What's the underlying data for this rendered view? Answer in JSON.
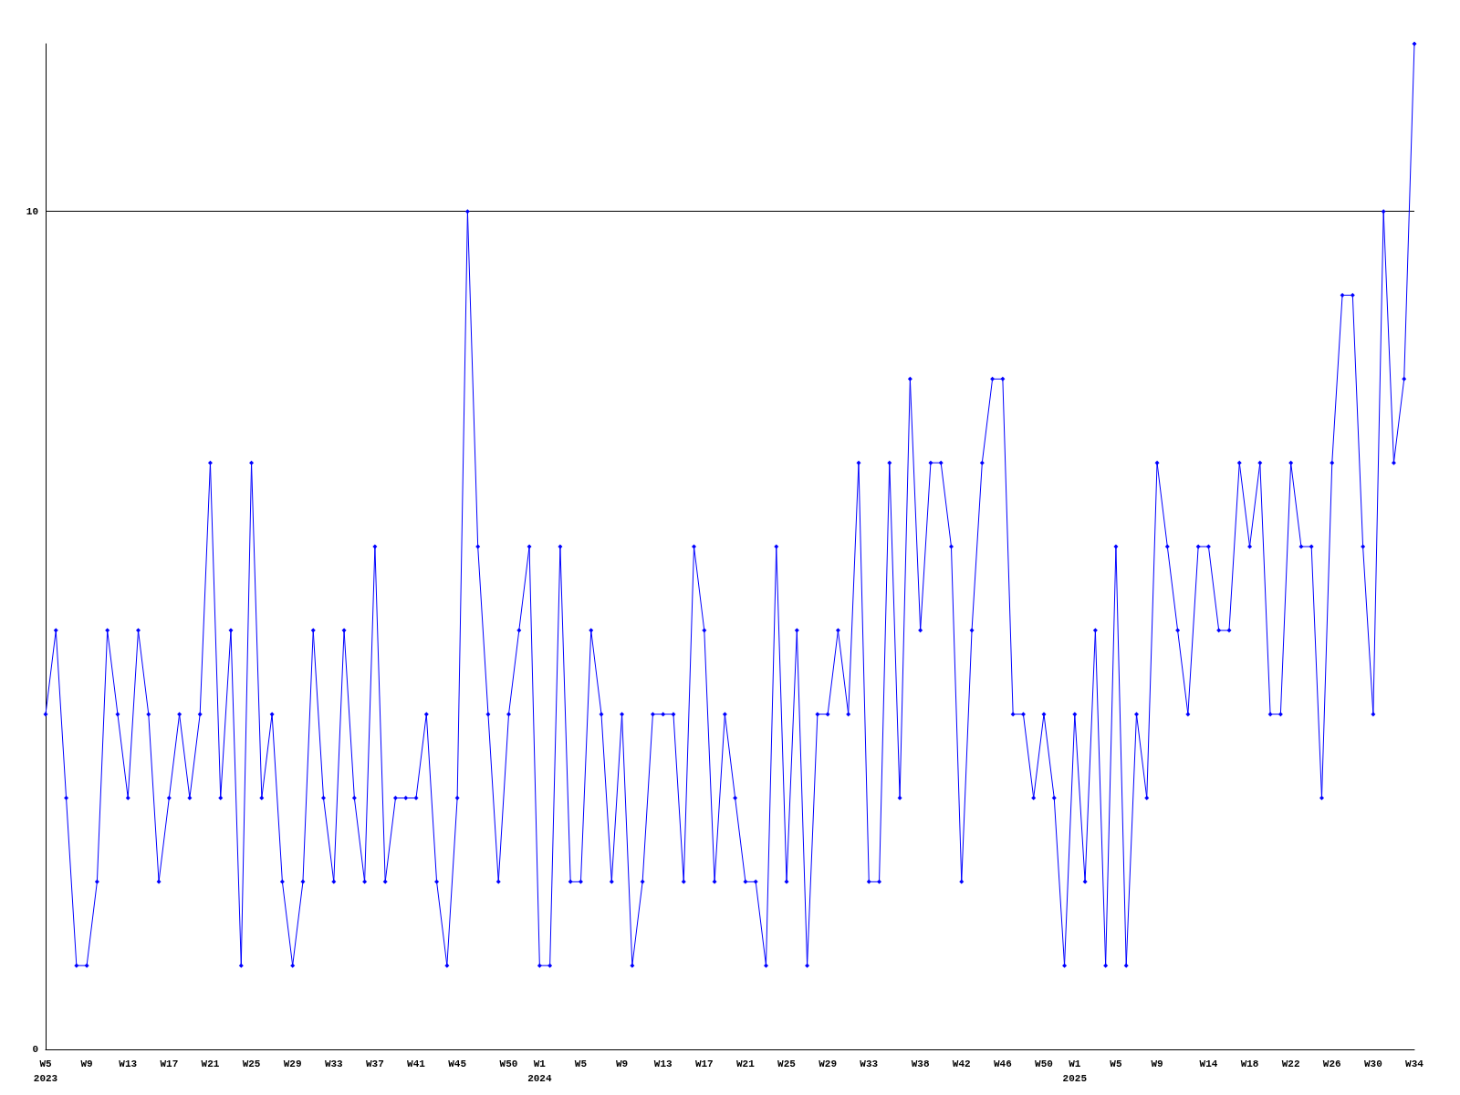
{
  "chart_data": {
    "type": "line",
    "categories": [
      "W5\n2023",
      null,
      null,
      null,
      "W9",
      null,
      null,
      null,
      "W13",
      null,
      null,
      null,
      "W17",
      null,
      null,
      null,
      "W21",
      null,
      null,
      null,
      "W25",
      null,
      null,
      null,
      "W29",
      null,
      null,
      null,
      "W33",
      null,
      null,
      null,
      "W37",
      null,
      null,
      null,
      "W41",
      null,
      null,
      null,
      "W45",
      null,
      null,
      null,
      null,
      "W50",
      null,
      null,
      "W1\n2024",
      null,
      null,
      null,
      "W5",
      null,
      null,
      null,
      "W9",
      null,
      null,
      null,
      "W13",
      null,
      null,
      null,
      "W17",
      null,
      null,
      null,
      "W21",
      null,
      null,
      null,
      "W25",
      null,
      null,
      null,
      "W29",
      null,
      null,
      null,
      "W33",
      null,
      null,
      null,
      null,
      "W38",
      null,
      null,
      null,
      "W42",
      null,
      null,
      null,
      "W46",
      null,
      null,
      null,
      "W50",
      null,
      null,
      "W1\n2025",
      null,
      null,
      null,
      "W5",
      null,
      null,
      null,
      "W9",
      null,
      null,
      null,
      null,
      "W14",
      null,
      null,
      null,
      "W18",
      null,
      null,
      null,
      "W22",
      null,
      null,
      null,
      "W26",
      null,
      null,
      null,
      "W30",
      null,
      null,
      null,
      "W34"
    ],
    "series": [
      {
        "color": "#0000ff",
        "values": [
          4,
          5,
          3,
          1,
          1,
          2,
          5,
          4,
          3,
          5,
          4,
          2,
          3,
          4,
          3,
          4,
          7,
          3,
          5,
          1,
          7,
          3,
          4,
          2,
          1,
          2,
          5,
          3,
          2,
          5,
          3,
          2,
          6,
          2,
          3,
          3,
          3,
          4,
          2,
          1,
          3,
          10,
          6,
          4,
          2,
          4,
          5,
          6,
          1,
          1,
          6,
          2,
          2,
          5,
          4,
          2,
          4,
          1,
          2,
          4,
          4,
          4,
          2,
          6,
          5,
          2,
          4,
          3,
          2,
          2,
          1,
          6,
          2,
          5,
          1,
          4,
          4,
          5,
          4,
          7,
          2,
          2,
          7,
          3,
          8,
          5,
          7,
          7,
          6,
          2,
          5,
          7,
          8,
          8,
          4,
          4,
          3,
          4,
          3,
          1,
          4,
          2,
          5,
          1,
          6,
          1,
          4,
          3,
          7,
          6,
          5,
          4,
          6,
          6,
          5,
          5,
          7,
          6,
          7,
          4,
          4,
          7,
          6,
          6,
          3,
          7,
          9,
          9,
          6,
          4,
          10,
          7,
          8,
          12
        ]
      }
    ],
    "ylim": [
      0,
      12
    ],
    "yticks": [
      0,
      10
    ],
    "grid": "y",
    "marker": "diamond",
    "line_style": "solid"
  }
}
